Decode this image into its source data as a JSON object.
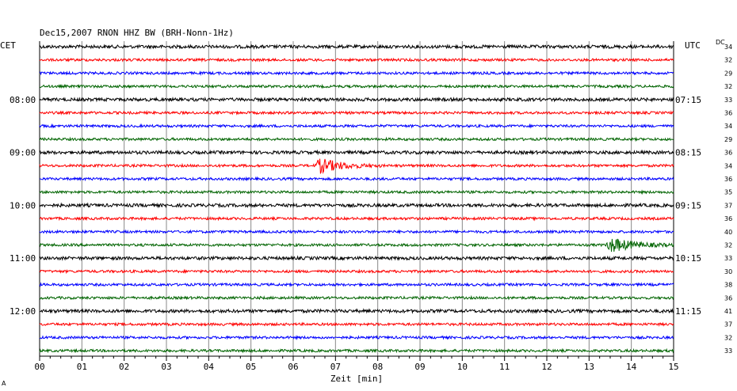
{
  "chart_data": {
    "type": "line",
    "title": "Dec15,2007   RNON HHZ BW (BRH-Nonn-1Hz)",
    "xlabel": "Zeit [min]",
    "left_timezone": "CET",
    "right_timezone": "UTC",
    "dc_header": "DC",
    "x_ticks": [
      "00",
      "01",
      "02",
      "03",
      "04",
      "05",
      "06",
      "07",
      "08",
      "09",
      "10",
      "11",
      "12",
      "13",
      "14",
      "15"
    ],
    "xlim": [
      0,
      15
    ],
    "minutes_per_trace": 15,
    "trace_colors": [
      "#000000",
      "#ff0000",
      "#0000ff",
      "#006400"
    ],
    "left_hour_labels": [
      {
        "trace": 4,
        "label": "08:00"
      },
      {
        "trace": 8,
        "label": "09:00"
      },
      {
        "trace": 12,
        "label": "10:00"
      },
      {
        "trace": 16,
        "label": "11:00"
      },
      {
        "trace": 20,
        "label": "12:00"
      }
    ],
    "right_hour_labels": [
      {
        "trace": 4,
        "label": "07:15"
      },
      {
        "trace": 8,
        "label": "08:15"
      },
      {
        "trace": 12,
        "label": "09:15"
      },
      {
        "trace": 16,
        "label": "10:15"
      },
      {
        "trace": 20,
        "label": "11:15"
      }
    ],
    "dc_offsets": [
      "34",
      "32",
      "29",
      "32",
      "33",
      "36",
      "34",
      "29",
      "36",
      "34",
      "36",
      "35",
      "37",
      "36",
      "40",
      "32",
      "33",
      "30",
      "38",
      "36",
      "41",
      "37",
      "32",
      "33"
    ],
    "events": [
      {
        "trace": 9,
        "start_min": 6.5,
        "duration_min": 1.6
      },
      {
        "trace": 15,
        "start_min": 13.4,
        "duration_min": 1.6
      }
    ],
    "corner_mark": "A"
  }
}
